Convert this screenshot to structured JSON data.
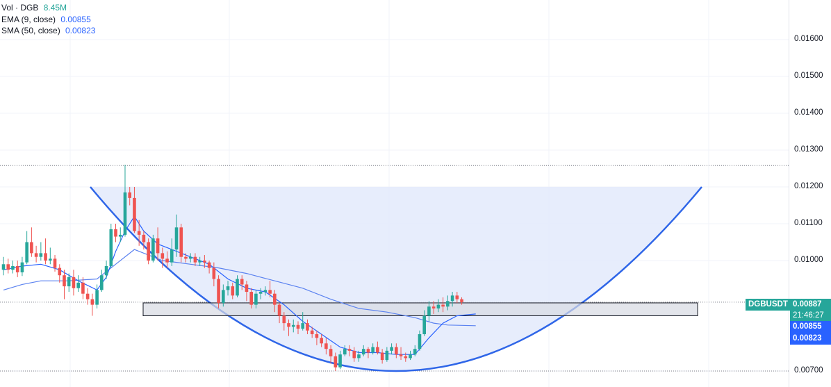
{
  "legend": {
    "volume_label": "Vol · DGB",
    "volume_value": "8.45M",
    "ema_label": "EMA (9, close)",
    "ema_value": "0.00855",
    "sma_label": "SMA (50, close)",
    "sma_value": "0.00823"
  },
  "colors": {
    "up": "#26a69a",
    "down": "#ef5350",
    "ema": "#2962ff",
    "sma": "#5b82f0",
    "bowl_fill": "#e3eafc",
    "bowl_line": "#2f66e8",
    "rect_fill": "#d7dae3",
    "badge_green": "#26a69a",
    "badge_blue": "#2962ff",
    "grid": "#f0f3fa"
  },
  "price_badges": {
    "symbol": "DGBUSDT",
    "last_price": "0.00887",
    "countdown": "21:46:27",
    "ema_price": "0.00855",
    "sma_price": "0.00823"
  },
  "chart_data": {
    "type": "candlestick",
    "symbol": "DGBUSDT",
    "y_axis_ticks": [
      "0.01600",
      "0.01500",
      "0.01400",
      "0.01300",
      "0.01200",
      "0.01100",
      "0.01000",
      "0.00700"
    ],
    "ylim": [
      0.00685,
      0.0166
    ],
    "annotations": {
      "rounded_bottom_pattern": {
        "left_rim": 0.012,
        "right_rim": 0.012,
        "bottom": 0.007
      },
      "support_zone": {
        "low": 0.0085,
        "high": 0.00885
      },
      "dotted_levels": [
        0.01258,
        0.00887,
        0.007
      ]
    },
    "candles": [
      [
        0.00975,
        0.0099,
        0.0101,
        0.0096
      ],
      [
        0.0099,
        0.00975,
        0.01005,
        0.00965
      ],
      [
        0.00975,
        0.00985,
        0.01,
        0.00965
      ],
      [
        0.00985,
        0.00968,
        0.01,
        0.00955
      ],
      [
        0.00968,
        0.00995,
        0.0101,
        0.00958
      ],
      [
        0.00995,
        0.0105,
        0.0108,
        0.0099
      ],
      [
        0.0105,
        0.0102,
        0.0109,
        0.0101
      ],
      [
        0.0102,
        0.0101,
        0.0104,
        0.00995
      ],
      [
        0.0101,
        0.0102,
        0.0105,
        0.01
      ],
      [
        0.0102,
        0.01,
        0.0106,
        0.0099
      ],
      [
        0.01,
        0.01005,
        0.01035,
        0.0099
      ],
      [
        0.01005,
        0.0098,
        0.01015,
        0.0097
      ],
      [
        0.0098,
        0.0096,
        0.0099,
        0.0094
      ],
      [
        0.0096,
        0.0093,
        0.00975,
        0.00895
      ],
      [
        0.0093,
        0.00955,
        0.00965,
        0.00915
      ],
      [
        0.00955,
        0.00925,
        0.00975,
        0.00905
      ],
      [
        0.00925,
        0.0094,
        0.0096,
        0.00915
      ],
      [
        0.0094,
        0.0091,
        0.00955,
        0.00895
      ],
      [
        0.0091,
        0.00895,
        0.00925,
        0.0088
      ],
      [
        0.00895,
        0.0088,
        0.0091,
        0.0085
      ],
      [
        0.0088,
        0.0092,
        0.00935,
        0.0087
      ],
      [
        0.0092,
        0.0096,
        0.00975,
        0.00915
      ],
      [
        0.0096,
        0.00985,
        0.01,
        0.0095
      ],
      [
        0.00985,
        0.01085,
        0.011,
        0.0098
      ],
      [
        0.01085,
        0.01065,
        0.011,
        0.0105
      ],
      [
        0.01065,
        0.0107,
        0.0109,
        0.0105
      ],
      [
        0.0107,
        0.01185,
        0.0126,
        0.01065
      ],
      [
        0.01185,
        0.0117,
        0.012,
        0.0115
      ],
      [
        0.0117,
        0.0108,
        0.012,
        0.01075
      ],
      [
        0.0108,
        0.0107,
        0.0111,
        0.0104
      ],
      [
        0.0107,
        0.0105,
        0.0108,
        0.0103
      ],
      [
        0.0105,
        0.01,
        0.0106,
        0.0099
      ],
      [
        0.01,
        0.0106,
        0.0107,
        0.00995
      ],
      [
        0.0106,
        0.0102,
        0.0109,
        0.01
      ],
      [
        0.0102,
        0.01005,
        0.01035,
        0.0098
      ],
      [
        0.01005,
        0.00995,
        0.01025,
        0.0098
      ],
      [
        0.00995,
        0.0103,
        0.0106,
        0.00985
      ],
      [
        0.0103,
        0.0109,
        0.01125,
        0.0101
      ],
      [
        0.0109,
        0.0101,
        0.011,
        0.00995
      ],
      [
        0.0101,
        0.01005,
        0.0102,
        0.00995
      ],
      [
        0.01005,
        0.0101,
        0.0102,
        0.00995
      ],
      [
        0.0101,
        0.00995,
        0.0102,
        0.00985
      ],
      [
        0.00995,
        0.01,
        0.0101,
        0.00985
      ],
      [
        0.01,
        0.00995,
        0.01015,
        0.0098
      ],
      [
        0.00995,
        0.0098,
        0.01,
        0.00965
      ],
      [
        0.0098,
        0.0095,
        0.00995,
        0.0093
      ],
      [
        0.0095,
        0.00885,
        0.0096,
        0.0087
      ],
      [
        0.00885,
        0.0092,
        0.00935,
        0.00875
      ],
      [
        0.0092,
        0.0093,
        0.00945,
        0.00905
      ],
      [
        0.0093,
        0.00905,
        0.0094,
        0.00895
      ],
      [
        0.00905,
        0.0095,
        0.0096,
        0.009
      ],
      [
        0.0095,
        0.00935,
        0.0096,
        0.0092
      ],
      [
        0.00935,
        0.00915,
        0.00945,
        0.0089
      ],
      [
        0.00915,
        0.0088,
        0.00925,
        0.0087
      ],
      [
        0.0088,
        0.0091,
        0.0092,
        0.0087
      ],
      [
        0.0091,
        0.00915,
        0.00925,
        0.00895
      ],
      [
        0.00915,
        0.0092,
        0.0093,
        0.00905
      ],
      [
        0.0092,
        0.0091,
        0.00945,
        0.009
      ],
      [
        0.0091,
        0.0088,
        0.0092,
        0.0086
      ],
      [
        0.0088,
        0.0085,
        0.00885,
        0.0083
      ],
      [
        0.0085,
        0.0083,
        0.0086,
        0.0081
      ],
      [
        0.0083,
        0.0082,
        0.0084,
        0.00795
      ],
      [
        0.0082,
        0.00825,
        0.0084,
        0.00805
      ],
      [
        0.00825,
        0.00815,
        0.00835,
        0.008
      ],
      [
        0.00815,
        0.0083,
        0.0086,
        0.0081
      ],
      [
        0.0083,
        0.0081,
        0.0084,
        0.008
      ],
      [
        0.0081,
        0.008,
        0.0082,
        0.0079
      ],
      [
        0.008,
        0.0079,
        0.0081,
        0.0077
      ],
      [
        0.0079,
        0.00775,
        0.008,
        0.00765
      ],
      [
        0.00775,
        0.0076,
        0.0079,
        0.00745
      ],
      [
        0.0076,
        0.0074,
        0.0077,
        0.0072
      ],
      [
        0.0074,
        0.0071,
        0.0075,
        0.007
      ],
      [
        0.0071,
        0.00745,
        0.00755,
        0.00705
      ],
      [
        0.00745,
        0.0076,
        0.0077,
        0.0074
      ],
      [
        0.0076,
        0.00755,
        0.0077,
        0.0074
      ],
      [
        0.00755,
        0.00735,
        0.00765,
        0.00725
      ],
      [
        0.00735,
        0.00745,
        0.00755,
        0.00725
      ],
      [
        0.00745,
        0.0076,
        0.0077,
        0.0074
      ],
      [
        0.0076,
        0.0075,
        0.00765,
        0.00735
      ],
      [
        0.0075,
        0.00765,
        0.00775,
        0.00745
      ],
      [
        0.00765,
        0.0075,
        0.0078,
        0.00745
      ],
      [
        0.0075,
        0.0073,
        0.0076,
        0.0072
      ],
      [
        0.0073,
        0.00755,
        0.00765,
        0.00725
      ],
      [
        0.00755,
        0.00765,
        0.00775,
        0.00745
      ],
      [
        0.00765,
        0.00745,
        0.00775,
        0.00735
      ],
      [
        0.00745,
        0.0074,
        0.00765,
        0.0073
      ],
      [
        0.0074,
        0.00735,
        0.0075,
        0.00725
      ],
      [
        0.00735,
        0.00745,
        0.00755,
        0.0073
      ],
      [
        0.00745,
        0.0076,
        0.0077,
        0.0074
      ],
      [
        0.0076,
        0.008,
        0.0081,
        0.00755
      ],
      [
        0.008,
        0.0085,
        0.00865,
        0.00795
      ],
      [
        0.0085,
        0.00875,
        0.0089,
        0.00835
      ],
      [
        0.00875,
        0.0087,
        0.0089,
        0.00855
      ],
      [
        0.0087,
        0.0088,
        0.00895,
        0.0086
      ],
      [
        0.0088,
        0.00875,
        0.009,
        0.0086
      ],
      [
        0.00875,
        0.0089,
        0.00905,
        0.00865
      ],
      [
        0.0089,
        0.00905,
        0.00915,
        0.00875
      ],
      [
        0.00905,
        0.00895,
        0.00915,
        0.00885
      ],
      [
        0.00895,
        0.00887,
        0.009,
        0.0088
      ]
    ],
    "sma_line": [
      [
        0,
        0.0092
      ],
      [
        4,
        0.00935
      ],
      [
        8,
        0.00945
      ],
      [
        14,
        0.00945
      ],
      [
        20,
        0.0095
      ],
      [
        24,
        0.0099
      ],
      [
        28,
        0.0103
      ],
      [
        34,
        0.01
      ],
      [
        40,
        0.0099
      ],
      [
        46,
        0.0098
      ],
      [
        52,
        0.00965
      ],
      [
        58,
        0.00945
      ],
      [
        64,
        0.00925
      ],
      [
        70,
        0.00895
      ],
      [
        76,
        0.0087
      ],
      [
        82,
        0.0086
      ],
      [
        88,
        0.00845
      ],
      [
        92,
        0.0083
      ],
      [
        95,
        0.00825
      ],
      [
        101,
        0.00823
      ]
    ],
    "ema_line": [
      [
        0,
        0.00975
      ],
      [
        4,
        0.00985
      ],
      [
        8,
        0.0099
      ],
      [
        12,
        0.00975
      ],
      [
        16,
        0.00945
      ],
      [
        20,
        0.0092
      ],
      [
        22,
        0.00955
      ],
      [
        24,
        0.01025
      ],
      [
        26,
        0.0108
      ],
      [
        28,
        0.0112
      ],
      [
        30,
        0.0108
      ],
      [
        33,
        0.01045
      ],
      [
        36,
        0.0103
      ],
      [
        40,
        0.0101
      ],
      [
        44,
        0.0099
      ],
      [
        48,
        0.0095
      ],
      [
        52,
        0.00925
      ],
      [
        56,
        0.00915
      ],
      [
        60,
        0.0088
      ],
      [
        64,
        0.00835
      ],
      [
        68,
        0.008
      ],
      [
        72,
        0.00765
      ],
      [
        76,
        0.0075
      ],
      [
        80,
        0.0075
      ],
      [
        84,
        0.00745
      ],
      [
        88,
        0.00745
      ],
      [
        91,
        0.0079
      ],
      [
        94,
        0.0083
      ],
      [
        97,
        0.0085
      ],
      [
        101,
        0.00855
      ]
    ]
  }
}
